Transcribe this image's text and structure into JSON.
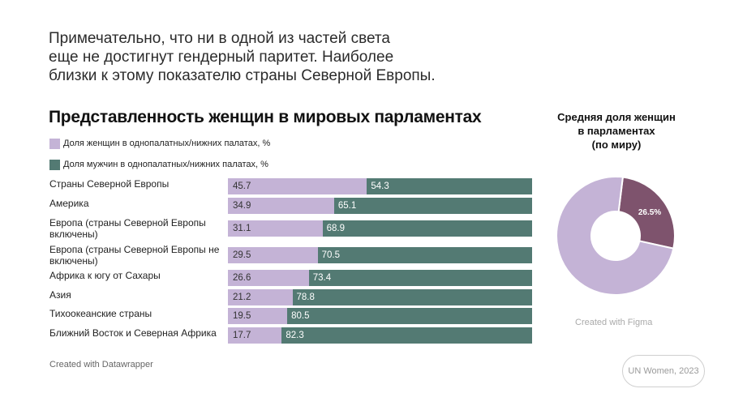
{
  "intro_lines": [
    "Примечательно, что ни в одной из частей света",
    "еще не достигнут гендерный паритет. Наиболее",
    "близки к этому показателю страны Северной Европы."
  ],
  "colors": {
    "women": "#c4b3d6",
    "men": "#537a73",
    "donut_highlight": "#7e536d",
    "donut_base": "#c4b3d6"
  },
  "chart_data": [
    {
      "type": "bar",
      "orientation": "horizontal",
      "stacked": true,
      "title": "Представленность женщин в мировых парламентах",
      "legend": [
        "Доля женщин в однопалатных/нижних палатах, %",
        "Доля мужчин в однопалатных/нижних палатах, %"
      ],
      "legend_position": "top-left",
      "categories": [
        [
          "Страны Северной Европы"
        ],
        [
          "Америка"
        ],
        [
          "Европа (страны Северной Европы",
          "включены)"
        ],
        [
          "Европа (страны Северной Европы не",
          "включены)"
        ],
        [
          "Африка к югу от Сахары"
        ],
        [
          "Азия"
        ],
        [
          "Тихоокеанские страны"
        ],
        [
          "Ближний Восток и Северная Африка"
        ]
      ],
      "series": [
        {
          "values": [
            45.7,
            34.9,
            31.1,
            29.5,
            26.6,
            21.2,
            19.5,
            17.7
          ]
        },
        {
          "values": [
            54.3,
            65.1,
            68.9,
            70.5,
            73.4,
            78.8,
            80.5,
            82.3
          ]
        }
      ],
      "xlim": [
        0,
        100
      ],
      "grid": false
    },
    {
      "type": "pie",
      "donut": true,
      "title": [
        "Средняя доля женщин",
        "в парламентах",
        "(по миру)"
      ],
      "values": [
        26.5,
        73.5
      ],
      "labels": [
        "26.5%",
        ""
      ]
    }
  ],
  "credits": {
    "left": "Created with Datawrapper",
    "right": "Created with Figma",
    "source": "UN Women, 2023"
  }
}
